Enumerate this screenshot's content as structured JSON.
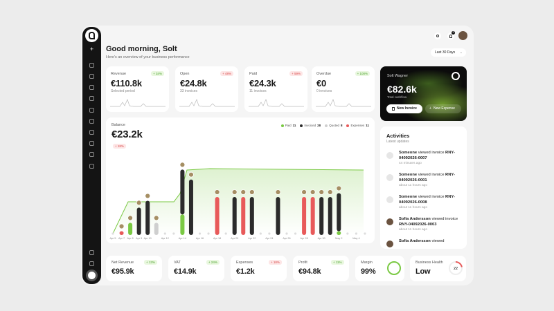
{
  "header": {
    "title": "Good morning, Solt",
    "subtitle": "Here's an overview of your business performance",
    "notification_count": 3,
    "period": "Last 30 Days"
  },
  "stats": [
    {
      "label": "Revenue",
      "change": "+ 34%",
      "tone": "good",
      "value": "€110.8k",
      "note": "Selected period"
    },
    {
      "label": "Open",
      "change": "+ 48%",
      "tone": "bad",
      "value": "€24.8k",
      "note": "33 invoices"
    },
    {
      "label": "Paid",
      "change": "+ 59%",
      "tone": "bad",
      "value": "€24.3k",
      "note": "11 invoices"
    },
    {
      "label": "Overdue",
      "change": "+ 100%",
      "tone": "good",
      "value": "€0",
      "note": "0 invoices"
    }
  ],
  "cashflow": {
    "name": "Solt Wagner",
    "value": "€82.6k",
    "label": "Total cashflow",
    "actions": [
      "New Invoice",
      "New Expense"
    ]
  },
  "balance": {
    "label": "Balance",
    "value": "€23.2k",
    "change": "+ 18%",
    "tone": "bad",
    "legend": [
      {
        "name": "Paid",
        "count": 11,
        "color": "#7ac943"
      },
      {
        "name": "Invoiced",
        "count": 28,
        "color": "#2b2b2b"
      },
      {
        "name": "Quoted",
        "count": 8,
        "color": "#cfcfcf"
      },
      {
        "name": "Expenses",
        "count": 11,
        "color": "#e85a5a"
      }
    ],
    "ylim": [
      0,
      100
    ],
    "columns": [
      {
        "date": "Apr 5",
        "bars": []
      },
      {
        "date": "Apr 7",
        "bars": [
          {
            "kind": 3,
            "value": 5
          }
        ]
      },
      {
        "date": "Apr 8",
        "bars": [
          {
            "kind": 0,
            "value": 16
          }
        ]
      },
      {
        "date": "Apr 9",
        "bars": [
          {
            "kind": 1,
            "value": 36
          }
        ]
      },
      {
        "date": "Apr 10",
        "bars": [
          {
            "kind": 1,
            "value": 45
          }
        ]
      },
      {
        "date": null,
        "bars": [
          {
            "kind": 2,
            "value": 16
          }
        ]
      },
      {
        "date": "Apr 12",
        "bars": []
      },
      {
        "date": null,
        "bars": []
      },
      {
        "date": "Apr 14",
        "bars": [
          {
            "kind": 0,
            "value": 27
          },
          {
            "kind": 1,
            "value": 59
          }
        ]
      },
      {
        "date": null,
        "bars": [
          {
            "kind": 1,
            "value": 73
          }
        ]
      },
      {
        "date": "Apr 16",
        "bars": []
      },
      {
        "date": null,
        "bars": []
      },
      {
        "date": "Apr 18",
        "bars": [
          {
            "kind": 3,
            "value": 50
          }
        ]
      },
      {
        "date": null,
        "bars": []
      },
      {
        "date": "Apr 20",
        "bars": [
          {
            "kind": 1,
            "value": 50
          }
        ]
      },
      {
        "date": null,
        "bars": [
          {
            "kind": 3,
            "value": 50
          }
        ]
      },
      {
        "date": "Apr 22",
        "bars": [
          {
            "kind": 1,
            "value": 50
          }
        ]
      },
      {
        "date": null,
        "bars": []
      },
      {
        "date": "Apr 24",
        "bars": []
      },
      {
        "date": null,
        "bars": [
          {
            "kind": 1,
            "value": 50
          }
        ]
      },
      {
        "date": "Apr 26",
        "bars": []
      },
      {
        "date": null,
        "bars": []
      },
      {
        "date": "Apr 28",
        "bars": [
          {
            "kind": 3,
            "value": 50
          }
        ]
      },
      {
        "date": null,
        "bars": [
          {
            "kind": 3,
            "value": 50
          }
        ]
      },
      {
        "date": "Apr 30",
        "bars": [
          {
            "kind": 1,
            "value": 50
          }
        ]
      },
      {
        "date": null,
        "bars": [
          {
            "kind": 1,
            "value": 50
          }
        ]
      },
      {
        "date": "May 2",
        "bars": [
          {
            "kind": 0,
            "value": 5
          },
          {
            "kind": 1,
            "value": 50
          }
        ]
      },
      {
        "date": null,
        "bars": []
      },
      {
        "date": "May 4",
        "bars": []
      },
      {
        "date": null,
        "bars": []
      }
    ]
  },
  "activities": {
    "title": "Activities",
    "subtitle": "Latest updates",
    "items": [
      {
        "actor": "Someone",
        "action": "viewed invoice",
        "invoice": "RNY-04092026-0007",
        "time": "44 minutes ago"
      },
      {
        "actor": "Someone",
        "action": "viewed invoice",
        "invoice": "RNY-04092026-0001",
        "time": "about 11 hours ago"
      },
      {
        "actor": "Someone",
        "action": "viewed invoice",
        "invoice": "RNY-04092026-0008",
        "time": "about 11 hours ago"
      },
      {
        "actor": "Sofia Andersson",
        "action": "viewed invoice",
        "invoice": "RNY-04092026-0003",
        "time": "about 11 hours ago"
      },
      {
        "actor": "Sofia Andersson",
        "action": "viewed",
        "invoice": "",
        "time": ""
      }
    ]
  },
  "kpis": [
    {
      "label": "Net Revenue",
      "change": "+ 13%",
      "tone": "good",
      "value": "€95.9k"
    },
    {
      "label": "VAT",
      "change": "+ 24%",
      "tone": "good",
      "value": "€14.9k"
    },
    {
      "label": "Expenses",
      "change": "+ 18%",
      "tone": "bad",
      "value": "€1.2k"
    },
    {
      "label": "Profit",
      "change": "+ 11%",
      "tone": "good",
      "value": "€94.8k"
    }
  ],
  "margin": {
    "label": "Margin",
    "value": "99%"
  },
  "health": {
    "label": "Business Health",
    "value": "Low",
    "score": 22
  }
}
